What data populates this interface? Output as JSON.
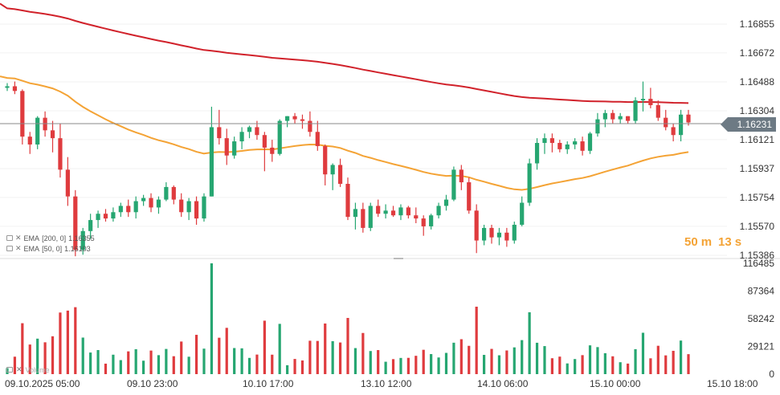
{
  "chart_data": [
    {
      "type": "candlestick",
      "instrument_price_axis": [
        "1.16855",
        "1.16672",
        "1.16488",
        "1.16304",
        "1.16121",
        "1.15937",
        "1.15754",
        "1.15570",
        "1.15386"
      ],
      "time_axis": [
        "09.10.2025 05:00",
        "09.10 23:00",
        "10.10 17:00",
        "13.10 12:00",
        "14.10 06:00",
        "15.10 00:00",
        "15.10 18:00"
      ],
      "current_price": "1.16231",
      "countdown": {
        "minutes": "50",
        "minutes_unit": "m",
        "seconds": "13",
        "seconds_unit": "s"
      },
      "candles": [
        [
          1.1645,
          1.1648,
          1.1643,
          1.1646
        ],
        [
          1.1646,
          1.1649,
          1.1641,
          1.1643
        ],
        [
          1.1643,
          1.1644,
          1.1609,
          1.1614
        ],
        [
          1.1614,
          1.1617,
          1.1603,
          1.1609
        ],
        [
          1.1609,
          1.1627,
          1.1606,
          1.1626
        ],
        [
          1.1626,
          1.163,
          1.1614,
          1.1618
        ],
        [
          1.1618,
          1.1624,
          1.1604,
          1.1613
        ],
        [
          1.1613,
          1.1622,
          1.1588,
          1.1593
        ],
        [
          1.1593,
          1.1601,
          1.157,
          1.1576
        ],
        [
          1.1576,
          1.158,
          1.1538,
          1.1542
        ],
        [
          1.1542,
          1.1556,
          1.1539,
          1.1554
        ],
        [
          1.1554,
          1.1565,
          1.1549,
          1.1561
        ],
        [
          1.1561,
          1.1567,
          1.1556,
          1.1565
        ],
        [
          1.1565,
          1.1568,
          1.156,
          1.1562
        ],
        [
          1.1562,
          1.1569,
          1.156,
          1.1566
        ],
        [
          1.1566,
          1.1572,
          1.1563,
          1.157
        ],
        [
          1.157,
          1.1574,
          1.1563,
          1.1566
        ],
        [
          1.1566,
          1.1576,
          1.1562,
          1.1573
        ],
        [
          1.1573,
          1.1577,
          1.157,
          1.1575
        ],
        [
          1.1575,
          1.1578,
          1.1566,
          1.1569
        ],
        [
          1.1569,
          1.1576,
          1.1565,
          1.1574
        ],
        [
          1.1574,
          1.1585,
          1.1573,
          1.1582
        ],
        [
          1.1582,
          1.1583,
          1.1571,
          1.1574
        ],
        [
          1.1574,
          1.1578,
          1.1563,
          1.1566
        ],
        [
          1.1566,
          1.1575,
          1.1561,
          1.1573
        ],
        [
          1.1573,
          1.1576,
          1.1558,
          1.1562
        ],
        [
          1.1562,
          1.1578,
          1.156,
          1.1576
        ],
        [
          1.1576,
          1.1633,
          1.1576,
          1.162
        ],
        [
          1.162,
          1.1631,
          1.1609,
          1.1613
        ],
        [
          1.1613,
          1.1619,
          1.1596,
          1.1602
        ],
        [
          1.1602,
          1.1614,
          1.16,
          1.1611
        ],
        [
          1.1611,
          1.162,
          1.1606,
          1.1617
        ],
        [
          1.1617,
          1.1621,
          1.1613,
          1.162
        ],
        [
          1.162,
          1.1624,
          1.1612,
          1.1615
        ],
        [
          1.1615,
          1.1617,
          1.1592,
          1.1607
        ],
        [
          1.1607,
          1.1612,
          1.1598,
          1.1603
        ],
        [
          1.1603,
          1.1625,
          1.1602,
          1.1624
        ],
        [
          1.1624,
          1.1627,
          1.162,
          1.1627
        ],
        [
          1.1627,
          1.1629,
          1.1622,
          1.1625
        ],
        [
          1.1625,
          1.1628,
          1.1619,
          1.1624
        ],
        [
          1.1624,
          1.163,
          1.1614,
          1.1617
        ],
        [
          1.1617,
          1.1624,
          1.1605,
          1.1608
        ],
        [
          1.1608,
          1.1609,
          1.1583,
          1.159
        ],
        [
          1.159,
          1.1597,
          1.158,
          1.1596
        ],
        [
          1.1596,
          1.16,
          1.1582,
          1.1584
        ],
        [
          1.1584,
          1.1588,
          1.1561,
          1.1563
        ],
        [
          1.1563,
          1.1572,
          1.1555,
          1.1568
        ],
        [
          1.1568,
          1.1572,
          1.1553,
          1.1556
        ],
        [
          1.1556,
          1.1572,
          1.1554,
          1.157
        ],
        [
          1.157,
          1.1574,
          1.1563,
          1.1565
        ],
        [
          1.1565,
          1.1571,
          1.1562,
          1.1567
        ],
        [
          1.1567,
          1.157,
          1.1563,
          1.1564
        ],
        [
          1.1564,
          1.1571,
          1.1561,
          1.1569
        ],
        [
          1.1569,
          1.157,
          1.1562,
          1.1564
        ],
        [
          1.1564,
          1.1569,
          1.1559,
          1.1562
        ],
        [
          1.1562,
          1.1564,
          1.1551,
          1.1557
        ],
        [
          1.1557,
          1.1565,
          1.1555,
          1.1564
        ],
        [
          1.1564,
          1.1572,
          1.1562,
          1.157
        ],
        [
          1.157,
          1.1577,
          1.1567,
          1.1574
        ],
        [
          1.1574,
          1.1595,
          1.1573,
          1.1593
        ],
        [
          1.1593,
          1.1596,
          1.158,
          1.1585
        ],
        [
          1.1585,
          1.1588,
          1.1565,
          1.1567
        ],
        [
          1.1567,
          1.1571,
          1.154,
          1.1548
        ],
        [
          1.1548,
          1.1558,
          1.1545,
          1.1556
        ],
        [
          1.1556,
          1.1558,
          1.1546,
          1.155
        ],
        [
          1.155,
          1.1556,
          1.1545,
          1.1553
        ],
        [
          1.1553,
          1.1556,
          1.1544,
          1.1548
        ],
        [
          1.1548,
          1.156,
          1.1546,
          1.1558
        ],
        [
          1.1558,
          1.1576,
          1.1557,
          1.1572
        ],
        [
          1.1572,
          1.16,
          1.157,
          1.1597
        ],
        [
          1.1597,
          1.1613,
          1.1593,
          1.161
        ],
        [
          1.161,
          1.1616,
          1.1603,
          1.1613
        ],
        [
          1.1613,
          1.1616,
          1.1604,
          1.161
        ],
        [
          1.161,
          1.1612,
          1.1604,
          1.1606
        ],
        [
          1.1606,
          1.1611,
          1.1603,
          1.1609
        ],
        [
          1.1609,
          1.1613,
          1.1606,
          1.1611
        ],
        [
          1.1611,
          1.1614,
          1.1602,
          1.1605
        ],
        [
          1.1605,
          1.1617,
          1.1603,
          1.1616
        ],
        [
          1.1616,
          1.1629,
          1.1614,
          1.1625
        ],
        [
          1.1625,
          1.1631,
          1.162,
          1.1629
        ],
        [
          1.1629,
          1.1631,
          1.1622,
          1.1625
        ],
        [
          1.1625,
          1.1629,
          1.1622,
          1.1627
        ],
        [
          1.1627,
          1.1627,
          1.1622,
          1.1624
        ],
        [
          1.1624,
          1.1639,
          1.1622,
          1.1637
        ],
        [
          1.1637,
          1.1649,
          1.163,
          1.1638
        ],
        [
          1.1638,
          1.1645,
          1.1632,
          1.1634
        ],
        [
          1.1634,
          1.1637,
          1.1624,
          1.1626
        ],
        [
          1.1626,
          1.1631,
          1.1618,
          1.162
        ],
        [
          1.162,
          1.1622,
          1.1611,
          1.1615
        ],
        [
          1.1615,
          1.1631,
          1.1611,
          1.1628
        ],
        [
          1.1628,
          1.1631,
          1.1621,
          1.1623
        ]
      ],
      "indicators": [
        {
          "name": "EMA",
          "params": "[200, 0]",
          "value": "1.16355",
          "color": "#d1222b"
        },
        {
          "name": "EMA",
          "params": "[50, 0]",
          "value": "1.16103",
          "color": "#f4a335"
        }
      ]
    },
    {
      "type": "bar",
      "name": "Volume",
      "y_axis": [
        "116485",
        "87364",
        "58242",
        "29121",
        "0"
      ],
      "colors": {
        "up": "#26a671",
        "down": "#df3b3e"
      }
    }
  ]
}
